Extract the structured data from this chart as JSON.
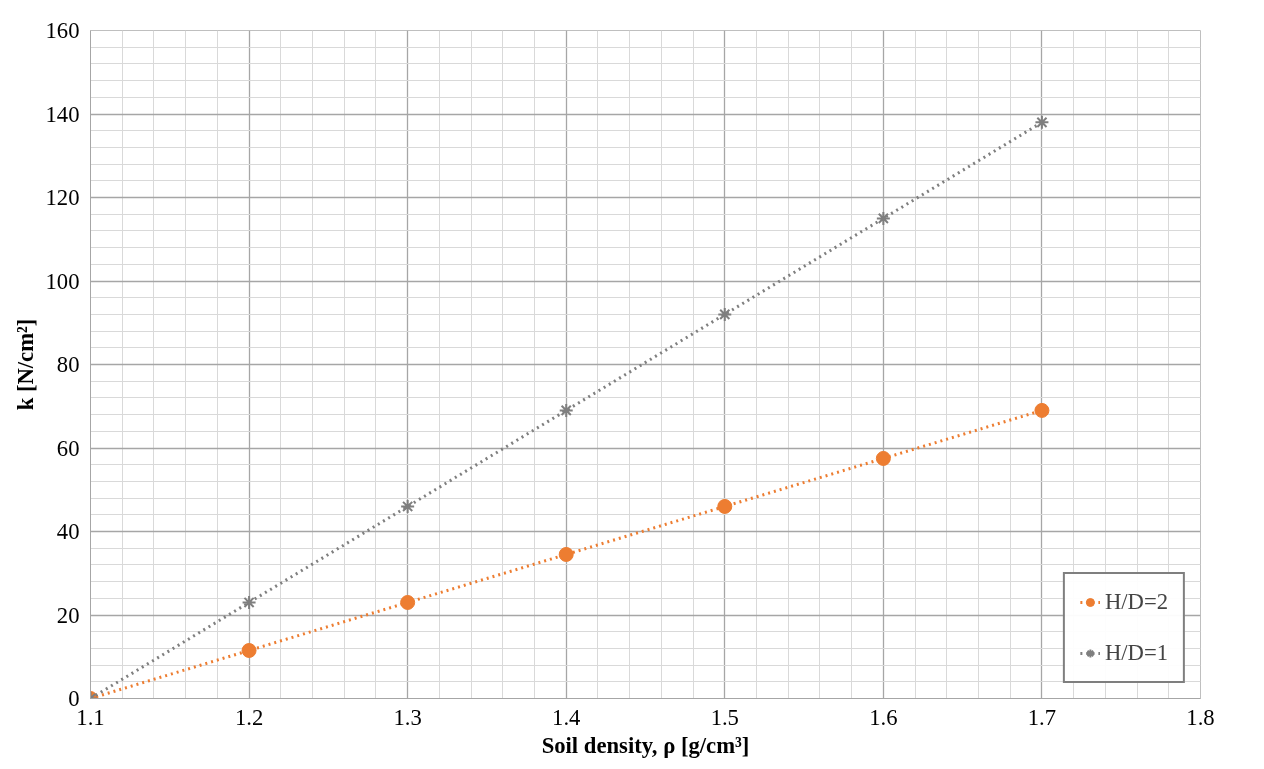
{
  "chart_data": {
    "type": "line",
    "xlabel": "Soil density, ρ [g/cm³]",
    "ylabel": "k [N/cm²]",
    "x": [
      1.1,
      1.2,
      1.3,
      1.4,
      1.5,
      1.6,
      1.7
    ],
    "series": [
      {
        "name": "H/D=2",
        "color": "#ed7d31",
        "marker": "circle",
        "values": [
          0,
          11.5,
          23,
          34.5,
          46,
          57.5,
          69
        ]
      },
      {
        "name": "H/D=1",
        "color": "#7f7f7f",
        "marker": "cross",
        "values": [
          0,
          23,
          46,
          69,
          92,
          115,
          138
        ]
      }
    ],
    "line_style": "dotted",
    "xlim": [
      1.1,
      1.8
    ],
    "xticks": [
      {
        "value": 1.1,
        "label": "1.1"
      },
      {
        "value": 1.2,
        "label": "1.2"
      },
      {
        "value": 1.3,
        "label": "1.3"
      },
      {
        "value": 1.4,
        "label": "1.4"
      },
      {
        "value": 1.5,
        "label": "1.5"
      },
      {
        "value": 1.6,
        "label": "1.6"
      },
      {
        "value": 1.7,
        "label": "1.7"
      },
      {
        "value": 1.8,
        "label": "1.8"
      }
    ],
    "ylim": [
      0,
      160
    ],
    "yticks": [
      0,
      20,
      40,
      60,
      80,
      100,
      120,
      140,
      160
    ],
    "grid": true,
    "legend": "bottom right"
  }
}
